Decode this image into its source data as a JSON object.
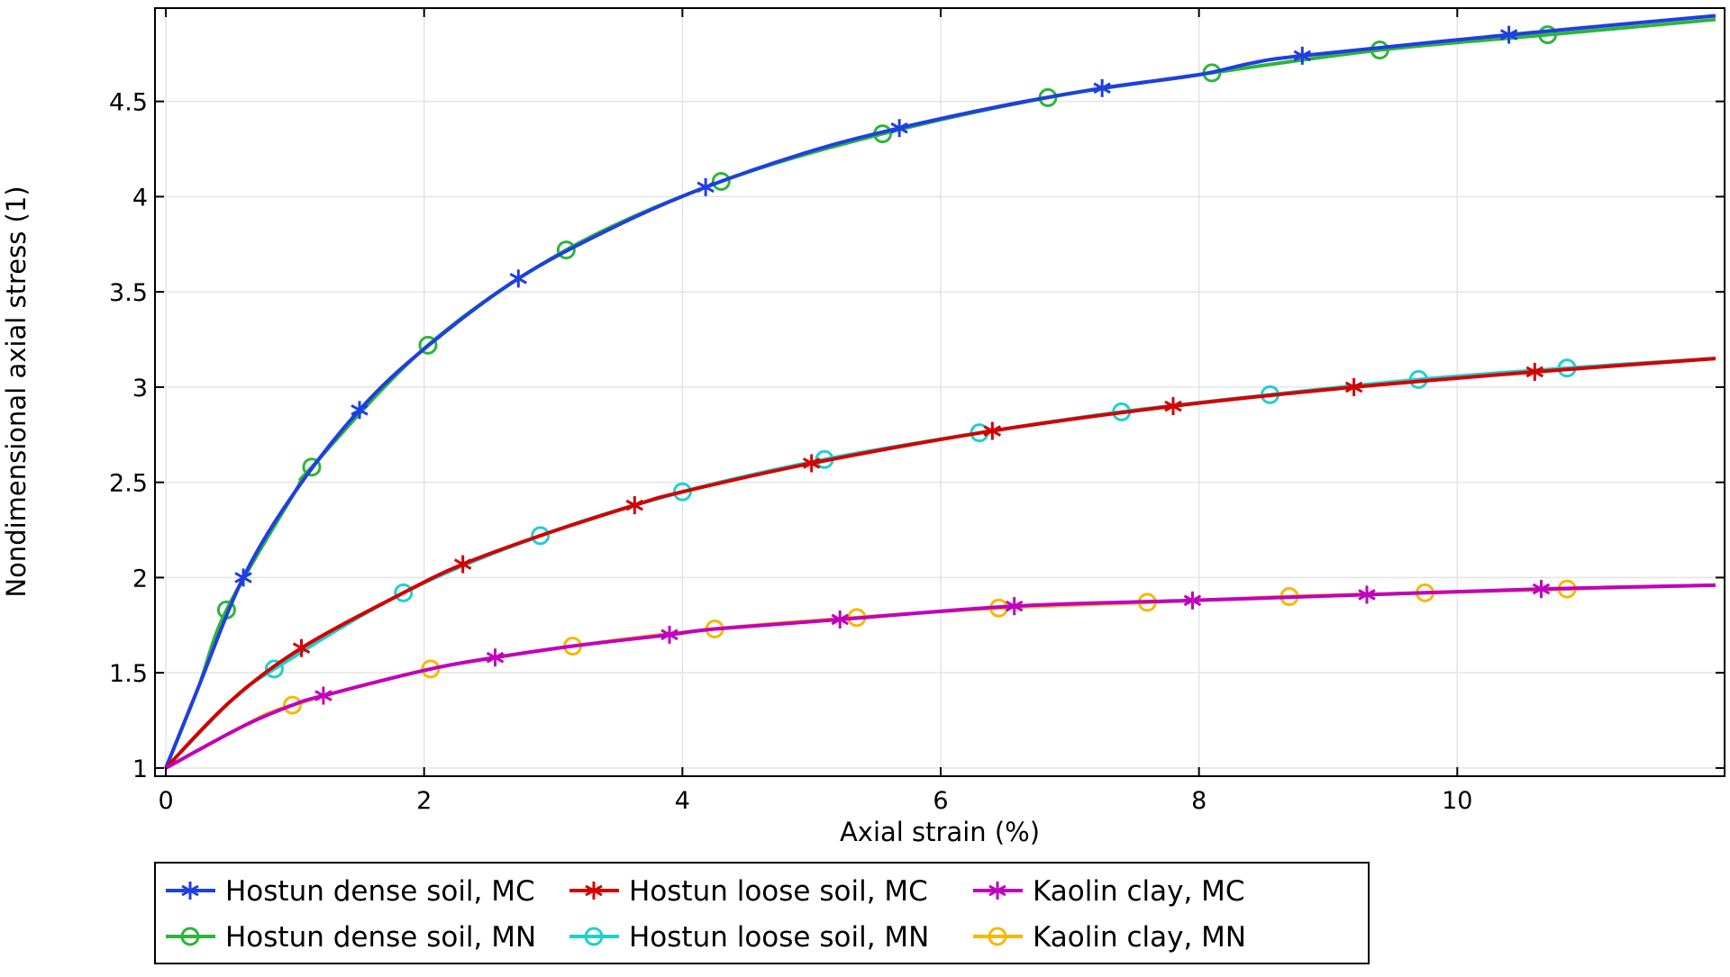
{
  "chart_data": {
    "type": "line",
    "title": "",
    "xlabel": "Axial strain (%)",
    "ylabel": "Nondimensional axial stress (1)",
    "xlim": [
      -0.084,
      12.07
    ],
    "ylim": [
      0.957,
      4.99
    ],
    "xticks": [
      0,
      2,
      4,
      6,
      8,
      10
    ],
    "xtick_labels": [
      "0",
      "2",
      "4",
      "6",
      "8",
      "10"
    ],
    "yticks": [
      1,
      1.5,
      2,
      2.5,
      3,
      3.5,
      4,
      4.5
    ],
    "ytick_labels": [
      "1",
      "1.5",
      "2",
      "2.5",
      "3",
      "3.5",
      "4",
      "4.5"
    ],
    "grid": true,
    "legend_position": "bottom",
    "series": [
      {
        "name": "Hostun dense soil, MC",
        "color": "#1f3fe0",
        "marker": "asterisk",
        "line": [
          [
            0,
            1
          ],
          [
            0.25,
            1.42
          ],
          [
            0.6,
            2.0
          ],
          [
            1,
            2.45
          ],
          [
            1.5,
            2.88
          ],
          [
            2,
            3.2
          ],
          [
            2.73,
            3.57
          ],
          [
            3.5,
            3.85
          ],
          [
            4.18,
            4.05
          ],
          [
            5,
            4.24
          ],
          [
            5.68,
            4.36
          ],
          [
            6.5,
            4.48
          ],
          [
            7.25,
            4.57
          ],
          [
            8,
            4.64
          ],
          [
            8.4,
            4.7
          ],
          [
            8.8,
            4.74
          ],
          [
            10.4,
            4.85
          ],
          [
            12,
            4.95
          ]
        ],
        "markers": [
          [
            0.6,
            2.0
          ],
          [
            1.5,
            2.88
          ],
          [
            2.73,
            3.57
          ],
          [
            4.18,
            4.05
          ],
          [
            5.68,
            4.36
          ],
          [
            7.25,
            4.57
          ],
          [
            8.8,
            4.74
          ],
          [
            10.4,
            4.85
          ]
        ]
      },
      {
        "name": "Hostun loose soil, MC",
        "color": "#d40000",
        "marker": "asterisk",
        "line": [
          [
            0,
            1
          ],
          [
            0.5,
            1.35
          ],
          [
            1.05,
            1.63
          ],
          [
            1.84,
            1.92
          ],
          [
            2.3,
            2.07
          ],
          [
            2.9,
            2.22
          ],
          [
            3.63,
            2.38
          ],
          [
            4,
            2.45
          ],
          [
            5,
            2.6
          ],
          [
            6.4,
            2.77
          ],
          [
            7.8,
            2.9
          ],
          [
            9.2,
            3.0
          ],
          [
            10.6,
            3.08
          ],
          [
            12,
            3.15
          ]
        ],
        "markers": [
          [
            1.05,
            1.63
          ],
          [
            2.3,
            2.07
          ],
          [
            3.63,
            2.38
          ],
          [
            5,
            2.6
          ],
          [
            6.4,
            2.77
          ],
          [
            7.8,
            2.9
          ],
          [
            9.2,
            3.0
          ],
          [
            10.6,
            3.08
          ]
        ]
      },
      {
        "name": "Kaolin clay, MC",
        "color": "#c000c0",
        "marker": "asterisk",
        "line": [
          [
            0,
            1
          ],
          [
            0.6,
            1.22
          ],
          [
            0.98,
            1.33
          ],
          [
            1.22,
            1.38
          ],
          [
            2.05,
            1.52
          ],
          [
            2.55,
            1.58
          ],
          [
            3.15,
            1.64
          ],
          [
            3.9,
            1.7
          ],
          [
            4.25,
            1.73
          ],
          [
            5.22,
            1.78
          ],
          [
            6.57,
            1.85
          ],
          [
            7.95,
            1.88
          ],
          [
            9.3,
            1.91
          ],
          [
            10.65,
            1.94
          ],
          [
            12,
            1.96
          ]
        ],
        "markers": [
          [
            1.22,
            1.38
          ],
          [
            2.55,
            1.58
          ],
          [
            3.9,
            1.7
          ],
          [
            5.22,
            1.78
          ],
          [
            6.57,
            1.85
          ],
          [
            7.95,
            1.88
          ],
          [
            9.3,
            1.91
          ],
          [
            10.65,
            1.94
          ]
        ]
      },
      {
        "name": "Hostun dense soil, MN",
        "color": "#2db53a",
        "marker": "circle",
        "line": [
          [
            0,
            1
          ],
          [
            0.25,
            1.42
          ],
          [
            0.47,
            1.83
          ],
          [
            1,
            2.45
          ],
          [
            1.13,
            2.58
          ],
          [
            2.03,
            3.22
          ],
          [
            3.1,
            3.72
          ],
          [
            4.3,
            4.08
          ],
          [
            5.55,
            4.33
          ],
          [
            6.83,
            4.52
          ],
          [
            8.1,
            4.65
          ],
          [
            9.4,
            4.77
          ],
          [
            10.7,
            4.85
          ],
          [
            12,
            4.93
          ]
        ],
        "markers": [
          [
            0.47,
            1.83
          ],
          [
            1.13,
            2.58
          ],
          [
            2.03,
            3.22
          ],
          [
            3.1,
            3.72
          ],
          [
            4.3,
            4.08
          ],
          [
            5.55,
            4.33
          ],
          [
            6.83,
            4.52
          ],
          [
            8.1,
            4.65
          ],
          [
            9.4,
            4.77
          ],
          [
            10.7,
            4.85
          ]
        ]
      },
      {
        "name": "Hostun loose soil, MN",
        "color": "#1fcfcf",
        "marker": "circle",
        "line": [
          [
            0,
            1
          ],
          [
            0.5,
            1.35
          ],
          [
            0.84,
            1.52
          ],
          [
            1.84,
            1.92
          ],
          [
            2.9,
            2.22
          ],
          [
            4.0,
            2.45
          ],
          [
            5.1,
            2.62
          ],
          [
            6.3,
            2.76
          ],
          [
            7.4,
            2.87
          ],
          [
            8.55,
            2.96
          ],
          [
            9.7,
            3.04
          ],
          [
            10.85,
            3.1
          ],
          [
            12,
            3.15
          ]
        ],
        "markers": [
          [
            0.84,
            1.52
          ],
          [
            1.84,
            1.92
          ],
          [
            2.9,
            2.22
          ],
          [
            4.0,
            2.45
          ],
          [
            5.1,
            2.62
          ],
          [
            6.3,
            2.76
          ],
          [
            7.4,
            2.87
          ],
          [
            8.55,
            2.96
          ],
          [
            9.7,
            3.04
          ],
          [
            10.85,
            3.1
          ]
        ]
      },
      {
        "name": "Kaolin clay, MN",
        "color": "#f5b800",
        "marker": "circle",
        "line": [
          [
            0,
            1
          ],
          [
            0.6,
            1.22
          ],
          [
            0.98,
            1.33
          ],
          [
            2.05,
            1.52
          ],
          [
            3.15,
            1.64
          ],
          [
            4.25,
            1.73
          ],
          [
            5.35,
            1.79
          ],
          [
            6.45,
            1.84
          ],
          [
            7.6,
            1.87
          ],
          [
            8.7,
            1.9
          ],
          [
            9.75,
            1.92
          ],
          [
            10.85,
            1.94
          ],
          [
            12,
            1.96
          ]
        ],
        "markers": [
          [
            0.98,
            1.33
          ],
          [
            2.05,
            1.52
          ],
          [
            3.15,
            1.64
          ],
          [
            4.25,
            1.73
          ],
          [
            5.35,
            1.79
          ],
          [
            6.45,
            1.84
          ],
          [
            7.6,
            1.87
          ],
          [
            8.7,
            1.9
          ],
          [
            9.75,
            1.92
          ],
          [
            10.85,
            1.94
          ]
        ]
      }
    ]
  }
}
